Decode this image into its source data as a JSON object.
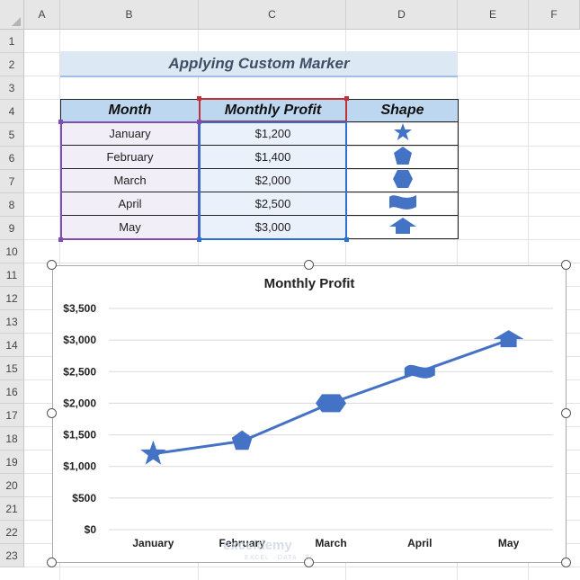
{
  "columns": [
    "A",
    "B",
    "C",
    "D",
    "E",
    "F"
  ],
  "rows": [
    "1",
    "2",
    "3",
    "4",
    "5",
    "6",
    "7",
    "8",
    "9",
    "10",
    "11",
    "12",
    "13",
    "14",
    "15",
    "16",
    "17",
    "18",
    "19",
    "20",
    "21",
    "22",
    "23"
  ],
  "sheet_title": "Applying Custom Marker",
  "table": {
    "headers": [
      "Month",
      "Monthly Profit",
      "Shape"
    ],
    "rows": [
      {
        "month": "January",
        "profit": "$1,200",
        "shape": "star-icon"
      },
      {
        "month": "February",
        "profit": "$1,400",
        "shape": "pentagon-icon"
      },
      {
        "month": "March",
        "profit": "$2,000",
        "shape": "hexagon-icon"
      },
      {
        "month": "April",
        "profit": "$2,500",
        "shape": "wave-flag-icon"
      },
      {
        "month": "May",
        "profit": "$3,000",
        "shape": "up-arrow-icon"
      }
    ]
  },
  "colors": {
    "accent": "#4472c4",
    "marker": "#4472c4",
    "header_fill": "#bcd7ef",
    "month_range_border": "#7e4fb0",
    "profit_header_border": "#c0323a",
    "profit_range_border": "#2e6fd1"
  },
  "chart_data": {
    "type": "line",
    "title": "Monthly Profit",
    "categories": [
      "January",
      "February",
      "March",
      "April",
      "May"
    ],
    "values": [
      1200,
      1400,
      2000,
      2500,
      3000
    ],
    "ylim": [
      0,
      3500
    ],
    "yticks": [
      0,
      500,
      1000,
      1500,
      2000,
      2500,
      3000,
      3500
    ],
    "ytick_labels": [
      "$0",
      "$500",
      "$1,000",
      "$1,500",
      "$2,000",
      "$2,500",
      "$3,000",
      "$3,500"
    ],
    "markers": [
      "star",
      "pentagon",
      "hexagon",
      "wave",
      "up-arrow"
    ],
    "grid": true,
    "legend": "none"
  },
  "watermark": {
    "name": "exceldemy",
    "tagline": "EXCEL · DATA · BI"
  }
}
